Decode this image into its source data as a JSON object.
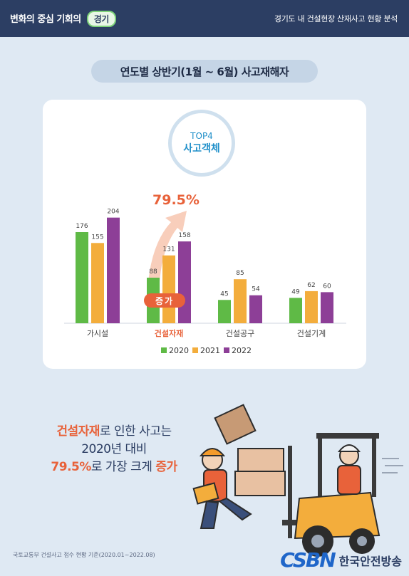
{
  "header": {
    "brand_prefix": "변화의 중심 기회의",
    "brand_badge": "경기",
    "title": "경기도 내 건설현장 산재사고 현황 분석"
  },
  "section_title": "연도별 상반기(1월 ~ 6월) 사고재해자",
  "top4": {
    "line1": "TOP4",
    "line2": "사고객체"
  },
  "highlight": {
    "percent": "79.5%",
    "badge": "증가"
  },
  "chart_data": {
    "type": "bar",
    "categories": [
      "가시설",
      "건설자재",
      "건설공구",
      "건설기계"
    ],
    "series": [
      {
        "name": "2020",
        "values": [
          176,
          88,
          45,
          49
        ],
        "color": "#5fba46"
      },
      {
        "name": "2021",
        "values": [
          155,
          131,
          85,
          62
        ],
        "color": "#f3ad3c"
      },
      {
        "name": "2022",
        "values": [
          204,
          158,
          54,
          60
        ],
        "color": "#8d3f97"
      }
    ],
    "highlight_category": "건설자재",
    "highlight_color": "#e8623a",
    "ylim": [
      0,
      220
    ],
    "legend": "bottom"
  },
  "message": {
    "line1_hl": "건설자재",
    "line1_rest": "로 인한 사고는",
    "line2": "2020년 대비",
    "line3_hl": "79.5%",
    "line3_mid": "로 가장 크게 ",
    "line3_hl2": "증가"
  },
  "footer": {
    "note": "국토교통부 건설사고 접수 현황 기준(2020.01~2022.08)",
    "logo_mark": "CSBN",
    "logo_name": "한국안전방송"
  },
  "colors": {
    "header_bg": "#2c3e63",
    "accent": "#e8623a",
    "page_bg": "#dfe9f3"
  }
}
